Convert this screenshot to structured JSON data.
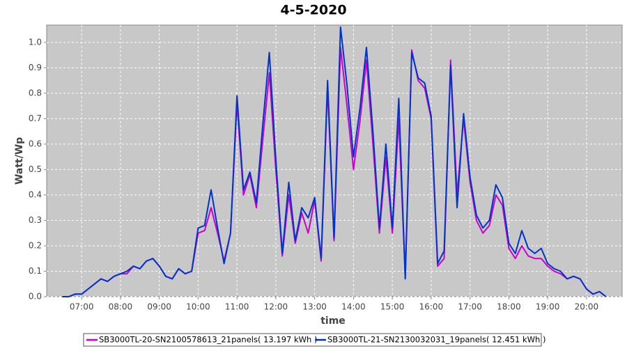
{
  "chart_data": {
    "type": "line",
    "title": "4-5-2020",
    "xlabel": "time",
    "ylabel": "Watt/Wp",
    "x": [
      390,
      400,
      410,
      420,
      430,
      440,
      450,
      460,
      470,
      480,
      490,
      500,
      510,
      520,
      530,
      540,
      550,
      560,
      570,
      580,
      590,
      600,
      610,
      620,
      630,
      640,
      650,
      660,
      670,
      680,
      690,
      700,
      710,
      720,
      730,
      740,
      750,
      760,
      770,
      780,
      790,
      800,
      810,
      820,
      830,
      840,
      850,
      860,
      870,
      880,
      890,
      900,
      910,
      920,
      930,
      940,
      950,
      960,
      970,
      980,
      990,
      1000,
      1010,
      1020,
      1030,
      1040,
      1050,
      1060,
      1070,
      1080,
      1090,
      1100,
      1110,
      1120,
      1130,
      1140,
      1150,
      1160,
      1170,
      1180,
      1190,
      1200,
      1210,
      1220,
      1230
    ],
    "series": [
      {
        "name": "SB3000TL-20-SN2100578613_21panels( 13.197 kWh )",
        "color": "#cc00cc",
        "values": [
          0.0,
          0.0,
          0.01,
          0.01,
          0.03,
          0.05,
          0.07,
          0.06,
          0.08,
          0.09,
          0.09,
          0.12,
          0.11,
          0.14,
          0.15,
          0.12,
          0.08,
          0.07,
          0.11,
          0.09,
          0.1,
          0.25,
          0.26,
          0.35,
          0.25,
          0.14,
          0.25,
          0.76,
          0.4,
          0.48,
          0.35,
          0.62,
          0.88,
          0.5,
          0.16,
          0.4,
          0.21,
          0.33,
          0.25,
          0.38,
          0.14,
          0.82,
          0.22,
          0.98,
          0.75,
          0.5,
          0.69,
          0.93,
          0.6,
          0.25,
          0.55,
          0.25,
          0.7,
          0.08,
          0.97,
          0.85,
          0.82,
          0.7,
          0.12,
          0.15,
          0.93,
          0.4,
          0.7,
          0.45,
          0.3,
          0.25,
          0.28,
          0.4,
          0.36,
          0.19,
          0.15,
          0.2,
          0.16,
          0.15,
          0.15,
          0.12,
          0.1,
          0.09,
          0.07,
          0.08,
          0.07,
          0.03,
          0.01,
          0.02,
          0.0
        ]
      },
      {
        "name": "SB3000TL-21-SN2130032031_19panels( 12.451 kWh )",
        "color": "#0033cc",
        "values": [
          0.0,
          0.0,
          0.01,
          0.01,
          0.03,
          0.05,
          0.07,
          0.06,
          0.08,
          0.09,
          0.1,
          0.12,
          0.11,
          0.14,
          0.15,
          0.12,
          0.08,
          0.07,
          0.11,
          0.09,
          0.1,
          0.27,
          0.28,
          0.42,
          0.27,
          0.13,
          0.25,
          0.79,
          0.42,
          0.49,
          0.37,
          0.68,
          0.96,
          0.54,
          0.17,
          0.45,
          0.22,
          0.35,
          0.31,
          0.39,
          0.15,
          0.85,
          0.23,
          1.06,
          0.83,
          0.55,
          0.74,
          0.98,
          0.65,
          0.27,
          0.6,
          0.27,
          0.78,
          0.07,
          0.96,
          0.86,
          0.84,
          0.71,
          0.13,
          0.18,
          0.91,
          0.35,
          0.72,
          0.47,
          0.32,
          0.27,
          0.3,
          0.44,
          0.39,
          0.21,
          0.17,
          0.26,
          0.19,
          0.17,
          0.19,
          0.13,
          0.11,
          0.1,
          0.07,
          0.08,
          0.07,
          0.03,
          0.01,
          0.02,
          0.0
        ]
      }
    ],
    "xlim": [
      366,
      1255
    ],
    "xticks": [
      {
        "value": 420,
        "label": "07:00"
      },
      {
        "value": 480,
        "label": "08:00"
      },
      {
        "value": 540,
        "label": "09:00"
      },
      {
        "value": 600,
        "label": "10:00"
      },
      {
        "value": 660,
        "label": "11:00"
      },
      {
        "value": 720,
        "label": "12:00"
      },
      {
        "value": 780,
        "label": "13:00"
      },
      {
        "value": 840,
        "label": "14:00"
      },
      {
        "value": 900,
        "label": "15:00"
      },
      {
        "value": 960,
        "label": "16:00"
      },
      {
        "value": 1020,
        "label": "17:00"
      },
      {
        "value": 1080,
        "label": "18:00"
      },
      {
        "value": 1140,
        "label": "19:00"
      },
      {
        "value": 1200,
        "label": "20:00"
      }
    ],
    "ylim": [
      0,
      1.068
    ],
    "yticks": [
      {
        "value": 0,
        "label": "0.0"
      },
      0.1,
      0.2,
      0.3,
      0.4,
      0.5,
      0.6,
      0.7,
      0.8,
      0.9,
      {
        "value": 1,
        "label": "1.0"
      }
    ],
    "grid": true
  }
}
